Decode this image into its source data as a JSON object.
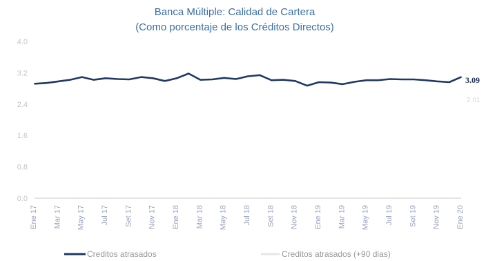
{
  "chart_data": {
    "type": "line",
    "title": "Banca Múltiple: Calidad de Cartera",
    "subtitle": "(Como porcentaje de los Créditos Directos)",
    "ylim": [
      0,
      4.0
    ],
    "y_ticks": [
      "0.0",
      "0.8",
      "1.6",
      "2.4",
      "3.2",
      "4.0"
    ],
    "x_tick_labels": [
      "Ene 17",
      "Mar 17",
      "May 17",
      "Jul 17",
      "Set 17",
      "Nov 17",
      "Ene 18",
      "Mar 18",
      "May 18",
      "Jul 18",
      "Set 18",
      "Nov 18",
      "Ene 19",
      "Mar 19",
      "May 19",
      "Jul 19",
      "Set 19",
      "Nov 19",
      "Ene 20"
    ],
    "series": [
      {
        "name": "Creditos atrasados",
        "color": "#1f3864",
        "values": [
          2.92,
          2.94,
          2.98,
          3.02,
          3.09,
          3.02,
          3.06,
          3.04,
          3.03,
          3.09,
          3.06,
          2.99,
          3.06,
          3.18,
          3.02,
          3.03,
          3.07,
          3.04,
          3.11,
          3.14,
          3.01,
          3.02,
          2.99,
          2.87,
          2.96,
          2.95,
          2.91,
          2.97,
          3.01,
          3.01,
          3.04,
          3.03,
          3.03,
          3.01,
          2.98,
          2.96,
          3.09
        ],
        "end_label": "3.09"
      },
      {
        "name": "Creditos atrasados (+90 dias)",
        "color": "#d9d9d9",
        "end_label": "2.01"
      }
    ],
    "grid": false,
    "legend_position": "bottom"
  }
}
